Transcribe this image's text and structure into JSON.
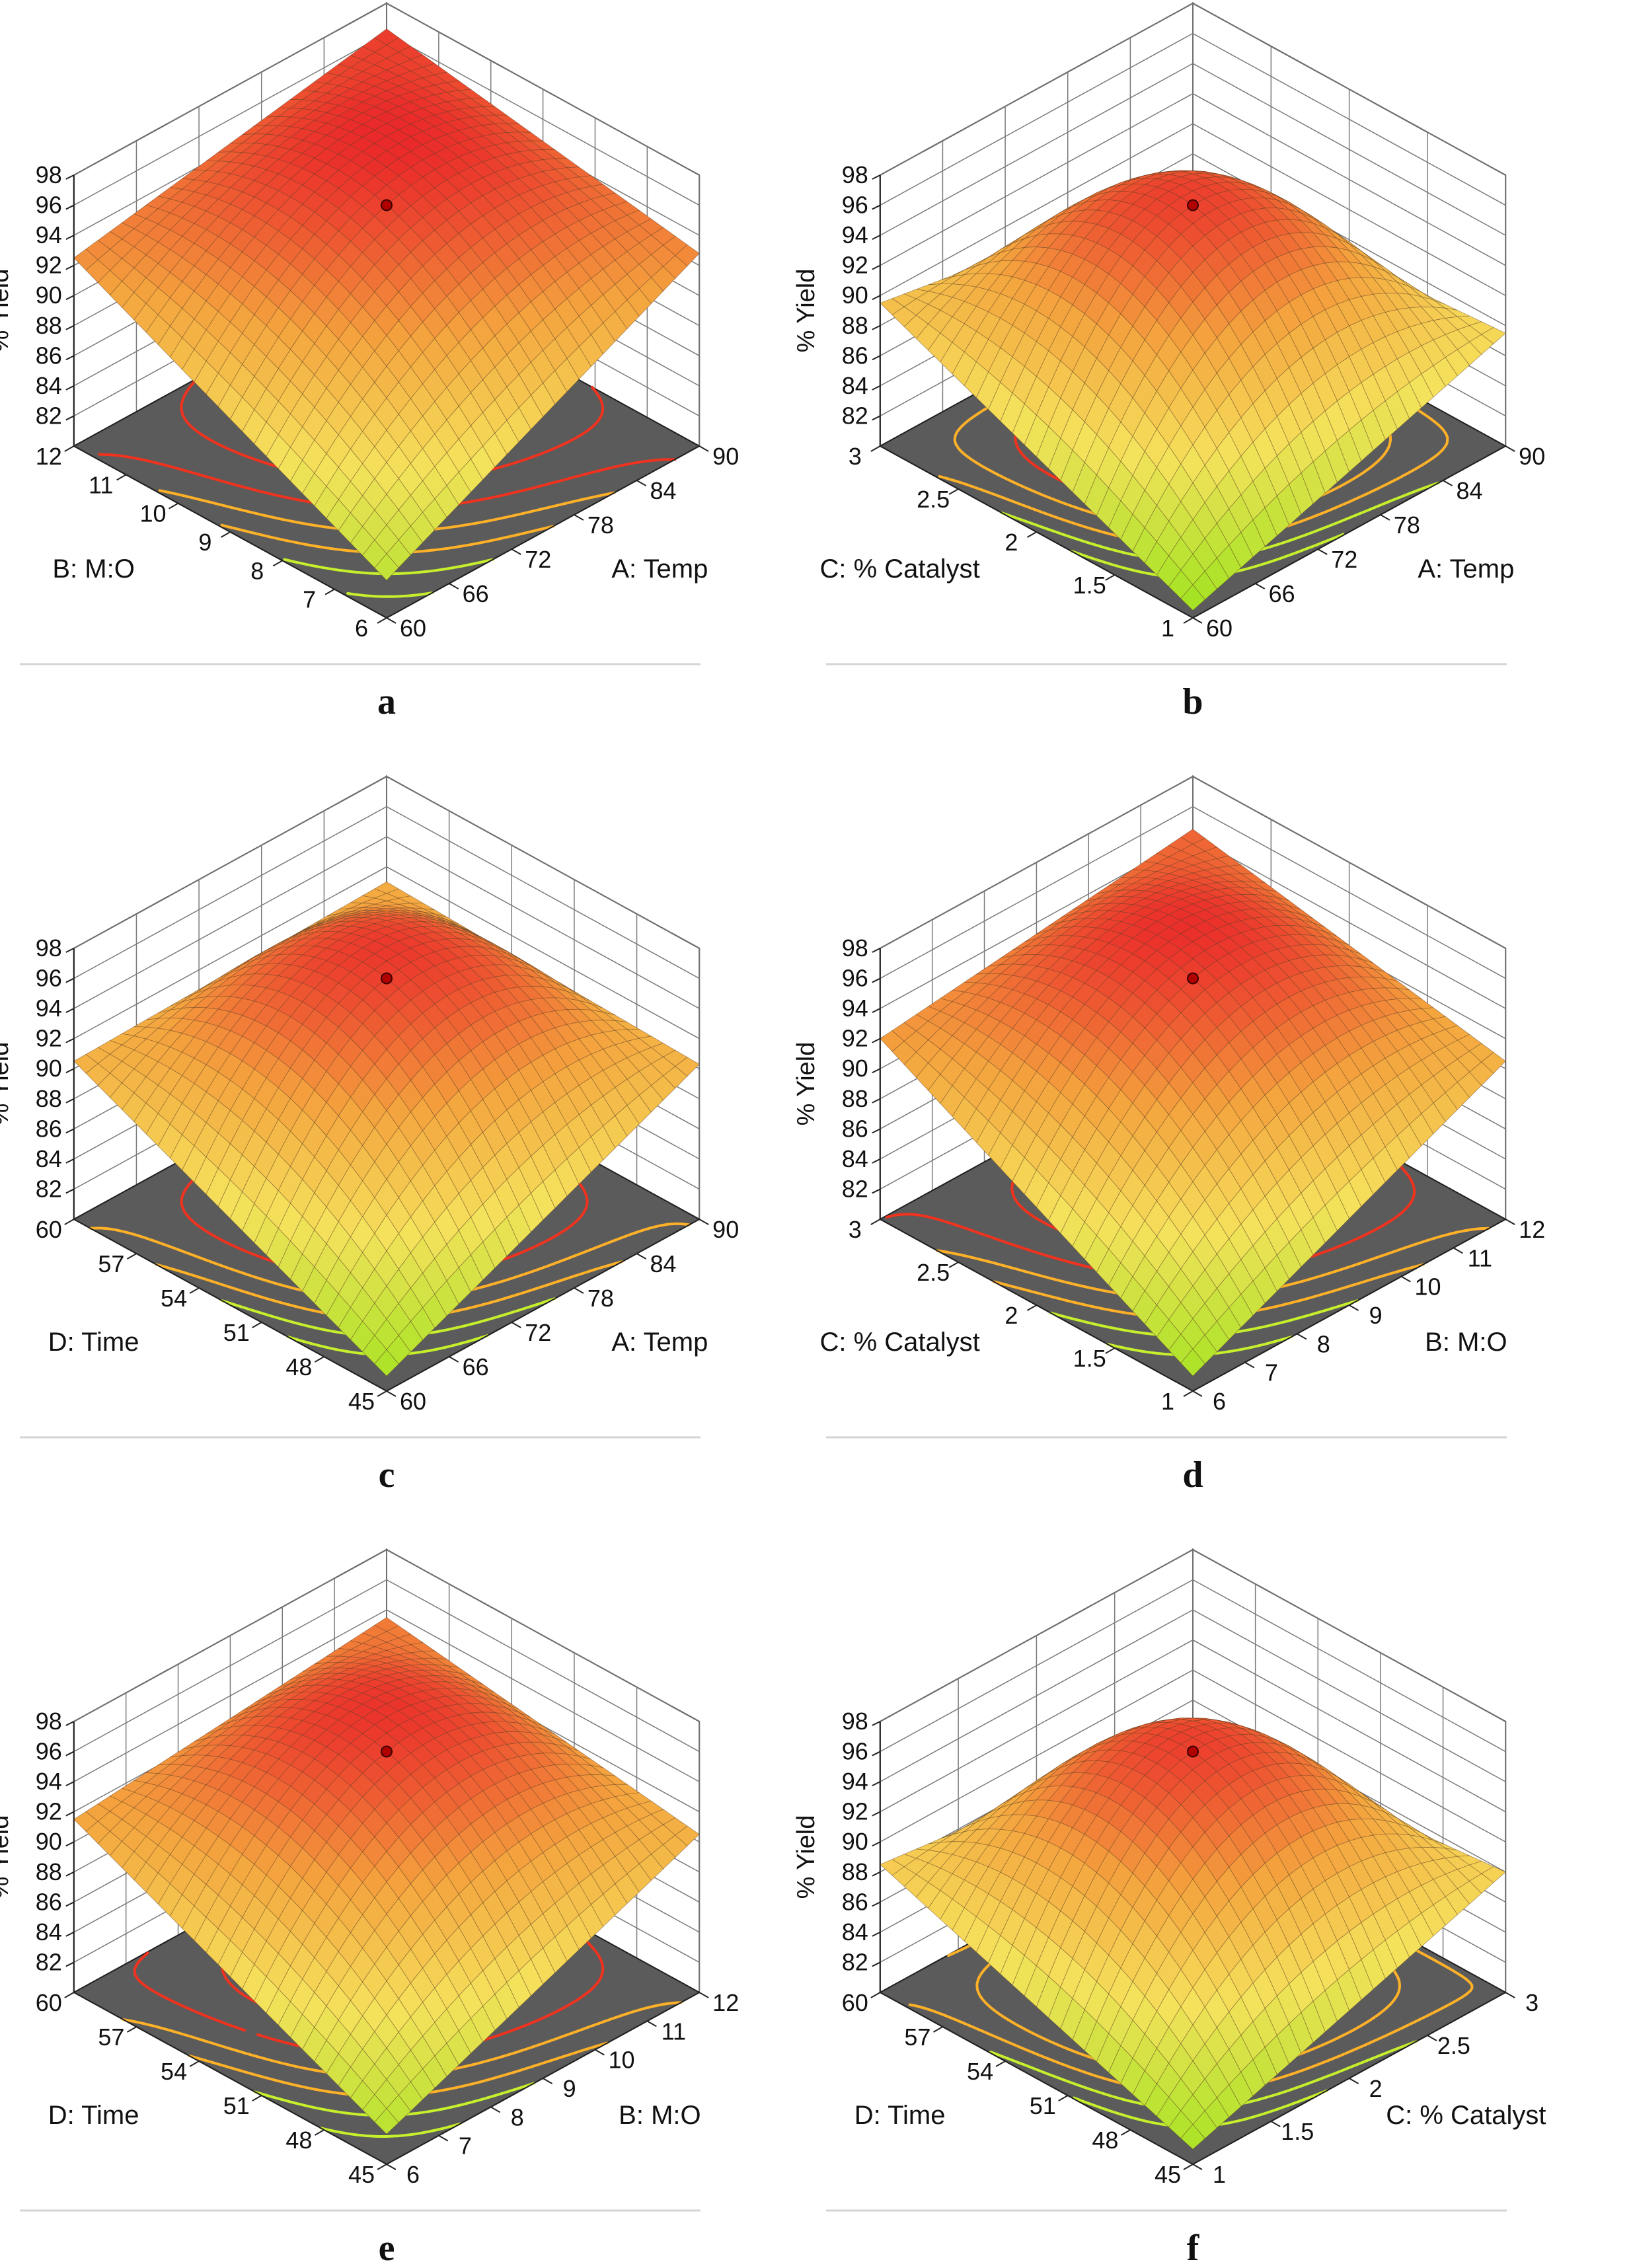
{
  "figure": {
    "zlabel": "% Yield",
    "zticks": [
      82,
      84,
      86,
      88,
      90,
      92,
      94,
      96,
      98
    ],
    "zlim": [
      80,
      98
    ],
    "colors": {
      "surface_low": "#9be31c",
      "surface_mid": "#f5e25c",
      "surface_midhigh": "#f4a43e",
      "surface_high": "#ea2a2a",
      "floor": "#5b5b5b",
      "grid": "#7a7a7a",
      "axis": "#222222",
      "center_point": "#b00000",
      "contour_low": "#c6f02c",
      "contour_mid": "#ffb128",
      "contour_high": "#f0321e"
    }
  },
  "chart_data": [
    {
      "panel": "a",
      "type": "surface",
      "x": {
        "label": "A: Temp",
        "ticks": [
          60,
          66,
          72,
          78,
          84,
          90
        ],
        "range": [
          60,
          90
        ]
      },
      "y": {
        "label": "B: M:O",
        "ticks": [
          6,
          7,
          8,
          9,
          10,
          11,
          12
        ],
        "range": [
          6,
          12
        ]
      },
      "zlabel": "% Yield",
      "corners": {
        "near": 82.5,
        "left": 92.5,
        "right": 92.8,
        "far": 96.3
      },
      "center": 96.0,
      "contour_levels": [
        84,
        86,
        88,
        90,
        92,
        94
      ]
    },
    {
      "panel": "b",
      "type": "surface",
      "x": {
        "label": "A: Temp",
        "ticks": [
          60,
          66,
          72,
          78,
          84,
          90
        ],
        "range": [
          60,
          90
        ]
      },
      "y": {
        "label": "C: % Catalyst",
        "ticks": [
          1,
          1.5,
          2,
          2.5,
          3
        ],
        "range": [
          1,
          3
        ]
      },
      "zlabel": "% Yield",
      "corners": {
        "near": 80.5,
        "left": 89.5,
        "right": 87.5,
        "far": 86.0
      },
      "center": 96.0,
      "contour_levels": [
        84,
        86,
        88,
        90,
        92,
        94
      ]
    },
    {
      "panel": "c",
      "type": "surface",
      "x": {
        "label": "A: Temp",
        "ticks": [
          60,
          66,
          72,
          78,
          84,
          90
        ],
        "range": [
          60,
          90
        ]
      },
      "y": {
        "label": "D: Time",
        "ticks": [
          45,
          48,
          51,
          54,
          57,
          60
        ],
        "range": [
          45,
          60
        ]
      },
      "zlabel": "% Yield",
      "corners": {
        "near": 81.0,
        "left": 90.5,
        "right": 90.3,
        "far": 91.0
      },
      "center": 96.0,
      "contour_levels": [
        84,
        86,
        88,
        90,
        92,
        94
      ]
    },
    {
      "panel": "d",
      "type": "surface",
      "x": {
        "label": "B: M:O",
        "ticks": [
          6,
          7,
          8,
          9,
          10,
          11,
          12
        ],
        "range": [
          6,
          12
        ]
      },
      "y": {
        "label": "C: % Catalyst",
        "ticks": [
          1,
          1.5,
          2,
          2.5,
          3
        ],
        "range": [
          1,
          3
        ]
      },
      "zlabel": "% Yield",
      "corners": {
        "near": 81.0,
        "left": 92.0,
        "right": 90.5,
        "far": 94.5
      },
      "center": 96.0,
      "contour_levels": [
        84,
        86,
        88,
        90,
        92,
        94
      ]
    },
    {
      "panel": "e",
      "type": "surface",
      "x": {
        "label": "B: M:O",
        "ticks": [
          6,
          7,
          8,
          9,
          10,
          11,
          12
        ],
        "range": [
          6,
          12
        ]
      },
      "y": {
        "label": "D: Time",
        "ticks": [
          45,
          48,
          51,
          54,
          57,
          60
        ],
        "range": [
          45,
          60
        ]
      },
      "zlabel": "% Yield",
      "corners": {
        "near": 82.0,
        "left": 91.5,
        "right": 90.5,
        "far": 93.5
      },
      "center": 96.0,
      "contour_levels": [
        84,
        86,
        88,
        90,
        92,
        94
      ]
    },
    {
      "panel": "f",
      "type": "surface",
      "x": {
        "label": "C: % Catalyst",
        "ticks": [
          1,
          1.5,
          2,
          2.5,
          3
        ],
        "range": [
          1,
          3
        ]
      },
      "y": {
        "label": "D: Time",
        "ticks": [
          45,
          48,
          51,
          54,
          57,
          60
        ],
        "range": [
          45,
          60
        ]
      },
      "zlabel": "% Yield",
      "corners": {
        "near": 81.0,
        "left": 88.5,
        "right": 88.0,
        "far": 86.0
      },
      "center": 96.0,
      "contour_levels": [
        84,
        86,
        88,
        90,
        92,
        94
      ]
    }
  ]
}
